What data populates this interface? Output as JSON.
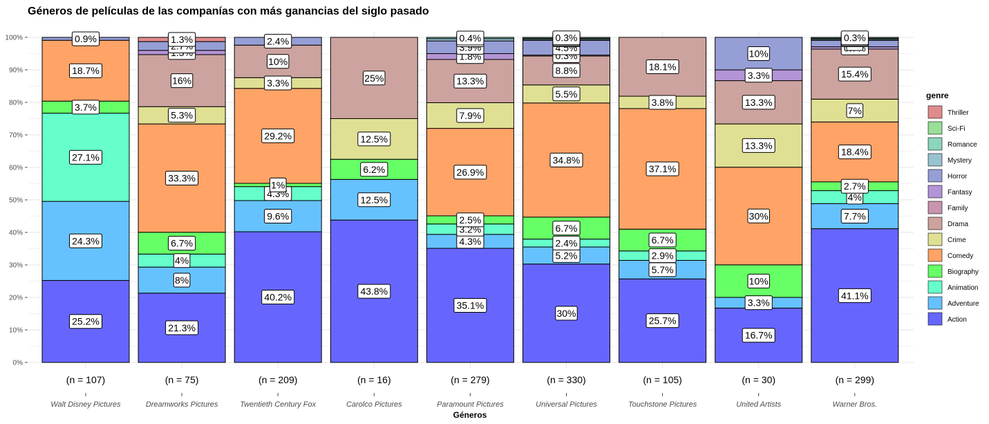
{
  "chart_data": {
    "type": "bar",
    "stacked": "percent",
    "title": "Géneros de películas de las companías con más ganancias del siglo pasado",
    "xlabel": "Géneros",
    "ylabel": "",
    "ylim": [
      0,
      100
    ],
    "y_ticks": [
      "0%",
      "10%",
      "20%",
      "30%",
      "40%",
      "50%",
      "60%",
      "70%",
      "80%",
      "90%",
      "100%"
    ],
    "grid": true,
    "legend_title": "genre",
    "legend_position": "right",
    "categories": [
      "Walt Disney Pictures",
      "Dreamworks Pictures",
      "Twentieth Century Fox",
      "Carolco Pictures",
      "Paramount Pictures",
      "Universal Pictures",
      "Touchstone Pictures",
      "United Artists",
      "Warner Bros."
    ],
    "n_labels": [
      "(n = 107)",
      "(n = 75)",
      "(n = 209)",
      "(n = 16)",
      "(n = 279)",
      "(n = 330)",
      "(n = 105)",
      "(n = 30)",
      "(n = 299)"
    ],
    "series": [
      {
        "name": "Action",
        "color": "#6666FF",
        "values": [
          25.2,
          21.3,
          40.2,
          43.8,
          35.1,
          30.0,
          25.7,
          16.7,
          41.1
        ]
      },
      {
        "name": "Adventure",
        "color": "#66C2FF",
        "values": [
          24.3,
          8.0,
          9.6,
          12.5,
          4.3,
          5.2,
          5.7,
          3.3,
          7.7
        ]
      },
      {
        "name": "Animation",
        "color": "#66FFCC",
        "values": [
          27.1,
          4.0,
          4.3,
          0,
          3.2,
          2.4,
          2.9,
          0,
          4.0
        ]
      },
      {
        "name": "Biography",
        "color": "#66FF66",
        "values": [
          3.7,
          6.7,
          1.0,
          6.2,
          2.5,
          6.7,
          6.7,
          10.0,
          2.7
        ]
      },
      {
        "name": "Comedy",
        "color": "#FFA366",
        "values": [
          18.7,
          33.3,
          29.2,
          0,
          26.9,
          34.8,
          37.1,
          30.0,
          18.4
        ]
      },
      {
        "name": "Crime",
        "color": "#E0E094",
        "values": [
          0,
          5.3,
          3.3,
          12.5,
          7.9,
          5.5,
          3.8,
          13.3,
          7.0
        ]
      },
      {
        "name": "Drama",
        "color": "#CCA39E",
        "values": [
          0,
          16.0,
          10.0,
          25.0,
          13.3,
          8.8,
          18.1,
          13.3,
          15.4
        ]
      },
      {
        "name": "Family",
        "color": "#C994AD",
        "values": [
          0,
          0,
          0,
          0,
          0,
          0.3,
          0,
          0,
          0
        ]
      },
      {
        "name": "Fantasy",
        "color": "#B394D6",
        "values": [
          0,
          1.3,
          0,
          0,
          1.8,
          0,
          0,
          3.3,
          0.7
        ]
      },
      {
        "name": "Horror",
        "color": "#969ED6",
        "values": [
          0.9,
          2.7,
          2.4,
          0,
          3.9,
          4.5,
          0,
          10.0,
          2.0
        ]
      },
      {
        "name": "Mystery",
        "color": "#99C2D1",
        "values": [
          0,
          0,
          0,
          0,
          0.7,
          0.3,
          0,
          0,
          0.3
        ]
      },
      {
        "name": "Romance",
        "color": "#8CD6BD",
        "values": [
          0,
          0,
          0,
          0,
          0.4,
          0.3,
          0,
          0,
          0.3
        ]
      },
      {
        "name": "Sci-Fi",
        "color": "#99DE99",
        "values": [
          0,
          0,
          0,
          0,
          0,
          0.3,
          0,
          0,
          0.3
        ]
      },
      {
        "name": "Thriller",
        "color": "#E08C8C",
        "values": [
          0,
          1.3,
          0,
          0,
          0,
          0,
          0,
          0,
          0
        ]
      }
    ]
  }
}
